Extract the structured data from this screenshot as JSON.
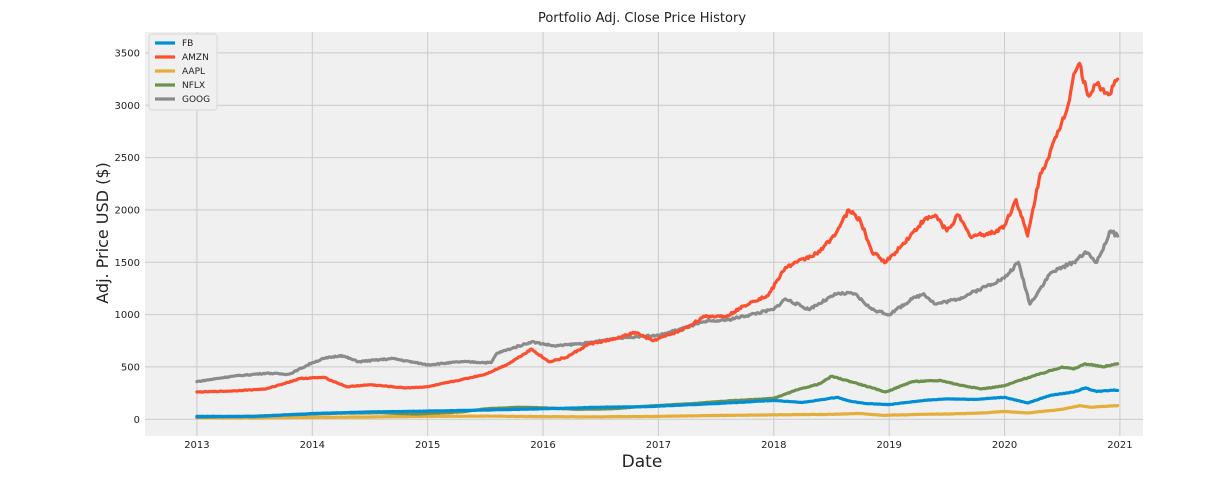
{
  "chart_data": {
    "type": "line",
    "title": "Portfolio Adj. Close Price History",
    "xlabel": "Date",
    "ylabel": "Adj. Price USD ($)",
    "xlim": [
      2012.55,
      2021.2
    ],
    "ylim": [
      -160,
      3700
    ],
    "x_ticks": [
      2013,
      2014,
      2015,
      2016,
      2017,
      2018,
      2019,
      2020,
      2021
    ],
    "x_tick_labels": [
      "2013",
      "2014",
      "2015",
      "2016",
      "2017",
      "2018",
      "2019",
      "2020",
      "2021"
    ],
    "y_ticks": [
      0,
      500,
      1000,
      1500,
      2000,
      2500,
      3000,
      3500
    ],
    "y_tick_labels": [
      "0",
      "500",
      "1000",
      "1500",
      "2000",
      "2500",
      "3000",
      "3500"
    ],
    "grid": true,
    "legend_position": "top-left",
    "series": [
      {
        "name": "FB",
        "color": "#008fd5",
        "points": [
          [
            2013.0,
            28
          ],
          [
            2013.5,
            26
          ],
          [
            2014.0,
            55
          ],
          [
            2014.5,
            70
          ],
          [
            2015.0,
            78
          ],
          [
            2015.5,
            88
          ],
          [
            2016.0,
            100
          ],
          [
            2016.5,
            115
          ],
          [
            2016.9,
            120
          ],
          [
            2017.5,
            150
          ],
          [
            2018.0,
            180
          ],
          [
            2018.25,
            160
          ],
          [
            2018.55,
            210
          ],
          [
            2018.65,
            175
          ],
          [
            2018.8,
            150
          ],
          [
            2019.0,
            140
          ],
          [
            2019.3,
            180
          ],
          [
            2019.5,
            195
          ],
          [
            2019.75,
            190
          ],
          [
            2020.0,
            210
          ],
          [
            2020.2,
            155
          ],
          [
            2020.4,
            230
          ],
          [
            2020.6,
            260
          ],
          [
            2020.7,
            300
          ],
          [
            2020.8,
            265
          ],
          [
            2020.95,
            280
          ],
          [
            2020.98,
            275
          ]
        ]
      },
      {
        "name": "AMZN",
        "color": "#fc4f30",
        "points": [
          [
            2013.0,
            260
          ],
          [
            2013.3,
            270
          ],
          [
            2013.6,
            290
          ],
          [
            2013.9,
            390
          ],
          [
            2014.1,
            400
          ],
          [
            2014.3,
            310
          ],
          [
            2014.5,
            330
          ],
          [
            2014.8,
            300
          ],
          [
            2015.0,
            310
          ],
          [
            2015.3,
            380
          ],
          [
            2015.5,
            430
          ],
          [
            2015.7,
            530
          ],
          [
            2015.9,
            670
          ],
          [
            2016.05,
            550
          ],
          [
            2016.2,
            590
          ],
          [
            2016.4,
            720
          ],
          [
            2016.6,
            760
          ],
          [
            2016.8,
            830
          ],
          [
            2016.95,
            750
          ],
          [
            2017.2,
            850
          ],
          [
            2017.4,
            980
          ],
          [
            2017.6,
            990
          ],
          [
            2017.8,
            1120
          ],
          [
            2017.95,
            1180
          ],
          [
            2018.1,
            1450
          ],
          [
            2018.2,
            1500
          ],
          [
            2018.4,
            1600
          ],
          [
            2018.55,
            1800
          ],
          [
            2018.65,
            2000
          ],
          [
            2018.75,
            1900
          ],
          [
            2018.85,
            1600
          ],
          [
            2018.97,
            1500
          ],
          [
            2019.1,
            1650
          ],
          [
            2019.3,
            1900
          ],
          [
            2019.4,
            1950
          ],
          [
            2019.5,
            1800
          ],
          [
            2019.6,
            1950
          ],
          [
            2019.7,
            1750
          ],
          [
            2019.9,
            1780
          ],
          [
            2020.0,
            1850
          ],
          [
            2020.1,
            2100
          ],
          [
            2020.2,
            1750
          ],
          [
            2020.3,
            2300
          ],
          [
            2020.45,
            2700
          ],
          [
            2020.55,
            3000
          ],
          [
            2020.6,
            3300
          ],
          [
            2020.65,
            3400
          ],
          [
            2020.72,
            3100
          ],
          [
            2020.8,
            3200
          ],
          [
            2020.9,
            3100
          ],
          [
            2020.98,
            3250
          ]
        ]
      },
      {
        "name": "AAPL",
        "color": "#e5ae38",
        "points": [
          [
            2013.0,
            15
          ],
          [
            2013.5,
            12
          ],
          [
            2014.0,
            18
          ],
          [
            2014.5,
            22
          ],
          [
            2015.0,
            28
          ],
          [
            2015.5,
            30
          ],
          [
            2016.0,
            25
          ],
          [
            2016.5,
            23
          ],
          [
            2017.0,
            28
          ],
          [
            2017.5,
            36
          ],
          [
            2018.0,
            42
          ],
          [
            2018.5,
            47
          ],
          [
            2018.75,
            55
          ],
          [
            2018.95,
            38
          ],
          [
            2019.3,
            47
          ],
          [
            2019.5,
            50
          ],
          [
            2019.8,
            60
          ],
          [
            2020.0,
            75
          ],
          [
            2020.2,
            60
          ],
          [
            2020.5,
            95
          ],
          [
            2020.65,
            130
          ],
          [
            2020.75,
            115
          ],
          [
            2020.98,
            130
          ]
        ]
      },
      {
        "name": "NFLX",
        "color": "#6d904f",
        "points": [
          [
            2013.0,
            20
          ],
          [
            2013.5,
            30
          ],
          [
            2014.0,
            50
          ],
          [
            2014.3,
            60
          ],
          [
            2014.6,
            62
          ],
          [
            2014.9,
            50
          ],
          [
            2015.3,
            70
          ],
          [
            2015.5,
            100
          ],
          [
            2015.8,
            115
          ],
          [
            2016.0,
            110
          ],
          [
            2016.3,
            95
          ],
          [
            2016.6,
            100
          ],
          [
            2016.9,
            125
          ],
          [
            2017.3,
            150
          ],
          [
            2017.6,
            175
          ],
          [
            2018.0,
            200
          ],
          [
            2018.2,
            280
          ],
          [
            2018.4,
            340
          ],
          [
            2018.5,
            410
          ],
          [
            2018.7,
            350
          ],
          [
            2018.85,
            300
          ],
          [
            2018.97,
            260
          ],
          [
            2019.2,
            360
          ],
          [
            2019.45,
            370
          ],
          [
            2019.6,
            330
          ],
          [
            2019.8,
            290
          ],
          [
            2020.0,
            320
          ],
          [
            2020.15,
            380
          ],
          [
            2020.3,
            430
          ],
          [
            2020.5,
            500
          ],
          [
            2020.6,
            480
          ],
          [
            2020.7,
            530
          ],
          [
            2020.85,
            500
          ],
          [
            2020.98,
            530
          ]
        ]
      },
      {
        "name": "GOOG",
        "color": "#8b8b8b",
        "points": [
          [
            2013.0,
            360
          ],
          [
            2013.3,
            410
          ],
          [
            2013.6,
            440
          ],
          [
            2013.8,
            430
          ],
          [
            2014.0,
            540
          ],
          [
            2014.1,
            580
          ],
          [
            2014.25,
            610
          ],
          [
            2014.4,
            550
          ],
          [
            2014.7,
            580
          ],
          [
            2014.9,
            540
          ],
          [
            2015.0,
            520
          ],
          [
            2015.3,
            550
          ],
          [
            2015.55,
            540
          ],
          [
            2015.6,
            630
          ],
          [
            2015.9,
            740
          ],
          [
            2016.1,
            700
          ],
          [
            2016.4,
            730
          ],
          [
            2016.6,
            770
          ],
          [
            2016.8,
            790
          ],
          [
            2017.0,
            800
          ],
          [
            2017.4,
            930
          ],
          [
            2017.6,
            950
          ],
          [
            2017.8,
            1000
          ],
          [
            2018.0,
            1050
          ],
          [
            2018.1,
            1150
          ],
          [
            2018.3,
            1050
          ],
          [
            2018.55,
            1200
          ],
          [
            2018.7,
            1200
          ],
          [
            2018.85,
            1050
          ],
          [
            2019.0,
            1000
          ],
          [
            2019.2,
            1150
          ],
          [
            2019.3,
            1200
          ],
          [
            2019.4,
            1100
          ],
          [
            2019.6,
            1150
          ],
          [
            2019.8,
            1250
          ],
          [
            2020.0,
            1350
          ],
          [
            2020.12,
            1500
          ],
          [
            2020.22,
            1100
          ],
          [
            2020.4,
            1400
          ],
          [
            2020.6,
            1500
          ],
          [
            2020.7,
            1600
          ],
          [
            2020.8,
            1500
          ],
          [
            2020.92,
            1800
          ],
          [
            2020.98,
            1750
          ]
        ]
      }
    ]
  }
}
